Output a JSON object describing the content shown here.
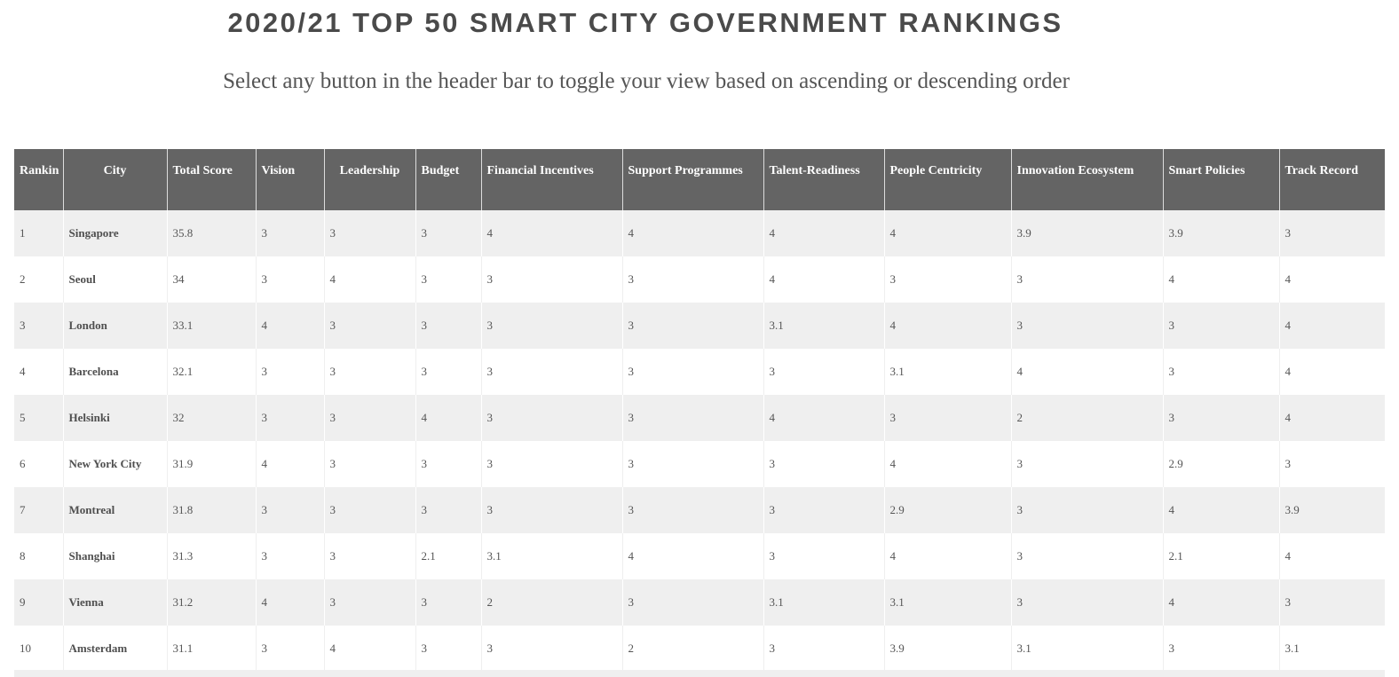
{
  "header": {
    "title": "2020/21 TOP 50 SMART CITY GOVERNMENT RANKINGS",
    "subtitle": "Select any button in the header bar to toggle your view based on ascending or descending order"
  },
  "table": {
    "columns": [
      "Rankin",
      "City",
      "Total Score",
      "Vision",
      "Leadership",
      "Budget",
      "Financial Incentives",
      "Support Programmes",
      "Talent-Readiness",
      "People Centricity",
      "Innovation Ecosystem",
      "Smart Policies",
      "Track Record"
    ],
    "rows": [
      [
        "1",
        "Singapore",
        "35.8",
        "3",
        "3",
        "3",
        "4",
        "4",
        "4",
        "4",
        "3.9",
        "3.9",
        "3"
      ],
      [
        "2",
        "Seoul",
        "34",
        "3",
        "4",
        "3",
        "3",
        "3",
        "4",
        "3",
        "3",
        "4",
        "4"
      ],
      [
        "3",
        "London",
        "33.1",
        "4",
        "3",
        "3",
        "3",
        "3",
        "3.1",
        "4",
        "3",
        "3",
        "4"
      ],
      [
        "4",
        "Barcelona",
        "32.1",
        "3",
        "3",
        "3",
        "3",
        "3",
        "3",
        "3.1",
        "4",
        "3",
        "4"
      ],
      [
        "5",
        "Helsinki",
        "32",
        "3",
        "3",
        "4",
        "3",
        "3",
        "4",
        "3",
        "2",
        "3",
        "4"
      ],
      [
        "6",
        "New York City",
        "31.9",
        "4",
        "3",
        "3",
        "3",
        "3",
        "3",
        "4",
        "3",
        "2.9",
        "3"
      ],
      [
        "7",
        "Montreal",
        "31.8",
        "3",
        "3",
        "3",
        "3",
        "3",
        "3",
        "2.9",
        "3",
        "4",
        "3.9"
      ],
      [
        "8",
        "Shanghai",
        "31.3",
        "3",
        "3",
        "2.1",
        "3.1",
        "4",
        "3",
        "4",
        "3",
        "2.1",
        "4"
      ],
      [
        "9",
        "Vienna",
        "31.2",
        "4",
        "3",
        "3",
        "2",
        "3",
        "3.1",
        "3.1",
        "3",
        "4",
        "3"
      ],
      [
        "10",
        "Amsterdam",
        "31.1",
        "3",
        "4",
        "3",
        "3",
        "2",
        "3",
        "3.9",
        "3.1",
        "3",
        "3.1"
      ]
    ]
  },
  "colors": {
    "header_bg": "#646464",
    "row_alt": "#efefef",
    "title": "#4a4a4a"
  }
}
